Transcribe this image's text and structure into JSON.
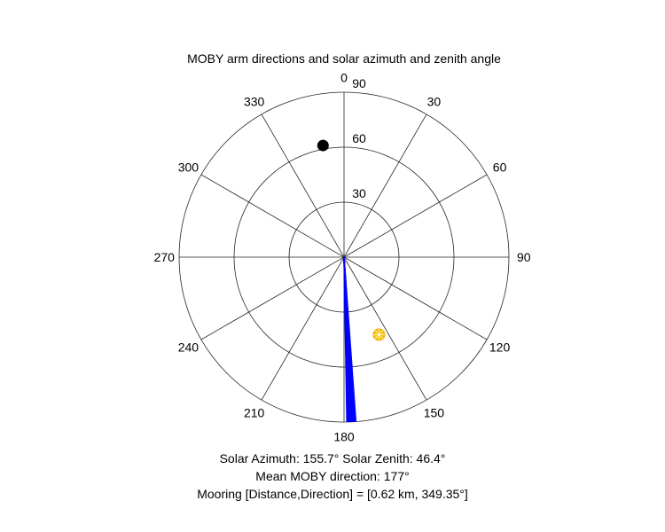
{
  "chart_data": {
    "type": "polar",
    "title": "MOBY arm directions and solar azimuth and zenith angle",
    "theta_zero": "top",
    "theta_direction": "clockwise",
    "theta_ticks": [
      0,
      30,
      60,
      90,
      120,
      150,
      180,
      210,
      240,
      270,
      300,
      330
    ],
    "r_ticks": [
      30,
      60,
      90
    ],
    "r_max": 90,
    "grid": true,
    "series": [
      {
        "kind": "arm-lines",
        "color": "#0000ff",
        "r": 90,
        "theta": [
          177.0,
          176.5,
          177.4,
          177.8,
          178.2,
          176.8,
          177.1,
          177.6,
          178.6,
          179.0,
          176.2,
          177.3,
          175.9,
          178.0,
          177.9,
          176.4,
          177.2,
          178.4,
          176.9,
          177.5
        ]
      },
      {
        "kind": "sun-marker",
        "color": "#f5c400",
        "theta": 155.7,
        "r": 46.4
      },
      {
        "kind": "mooring-marker",
        "color": "#000000",
        "theta": 349.35,
        "r": 62
      }
    ]
  },
  "captions": {
    "line1": "Solar Azimuth: 155.7°    Solar Zenith: 46.4°",
    "line2": "Mean MOBY direction: 177°",
    "line3": "Mooring [Distance,Direction] = [0.62 km, 349.35°]"
  }
}
